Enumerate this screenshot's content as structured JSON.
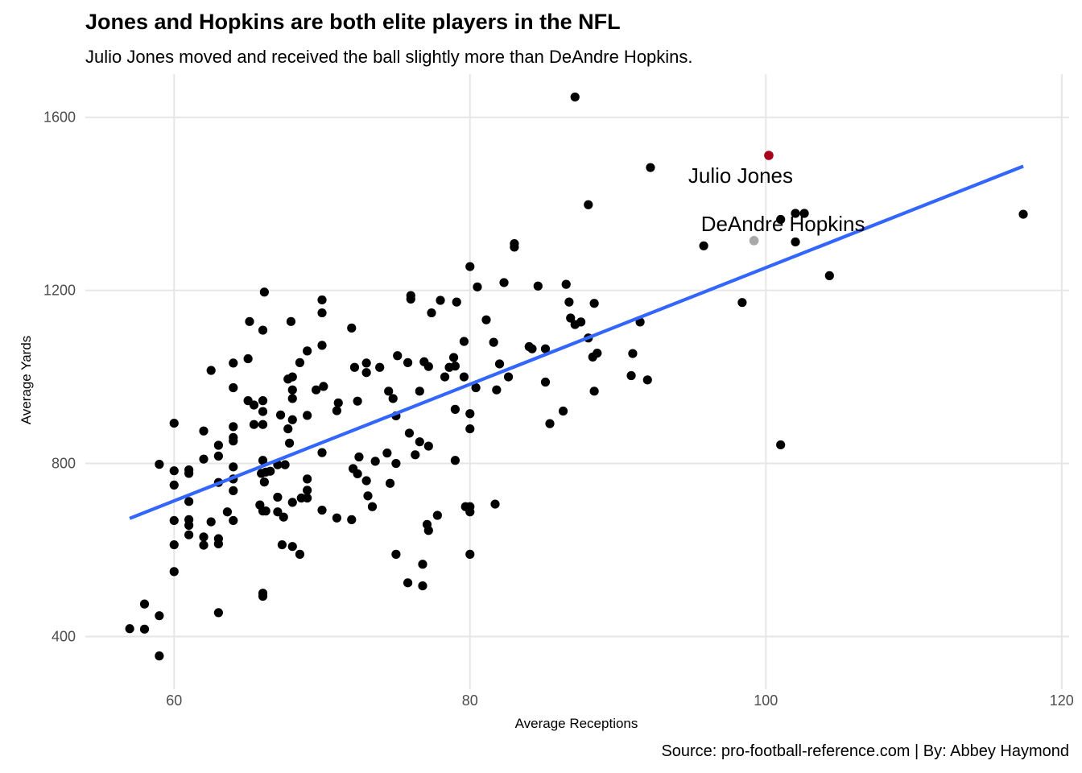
{
  "title": "Jones and Hopkins are both elite players in the NFL",
  "subtitle": "Julio Jones moved and received the ball slightly more than DeAndre Hopkins.",
  "caption": "Source: pro-football-reference.com | By: Abbey Haymond",
  "colors": {
    "point": "#000000",
    "julio": "#a6001a",
    "hopkins": "#a8a8a8",
    "trend": "#3366ff",
    "grid": "#e6e6e6",
    "tick": "#4d4d4d"
  },
  "chart_data": {
    "type": "scatter",
    "xlabel": "Average Receptions",
    "ylabel": "Average Yards",
    "xlim": [
      54,
      120.5
    ],
    "ylim": [
      278,
      1700
    ],
    "xticks": [
      60,
      80,
      100,
      120
    ],
    "yticks": [
      400,
      800,
      1200,
      1600
    ],
    "grid": true,
    "highlights": [
      {
        "label": "Julio Jones",
        "x": 100.2,
        "y": 1512
      },
      {
        "label": "DeAndre Hopkins",
        "x": 99.2,
        "y": 1315
      }
    ],
    "trend_line": {
      "x": [
        57,
        117.4
      ],
      "y": [
        673,
        1487
      ]
    },
    "points": [
      [
        87.1,
        1647
      ],
      [
        92.2,
        1484
      ],
      [
        88,
        1398
      ],
      [
        95.8,
        1303
      ],
      [
        98.4,
        1172
      ],
      [
        101,
        1364
      ],
      [
        102,
        1378
      ],
      [
        102.6,
        1378
      ],
      [
        102,
        1312
      ],
      [
        104.3,
        1234
      ],
      [
        117.4,
        1376
      ],
      [
        101,
        843
      ],
      [
        83,
        1308
      ],
      [
        83,
        1300
      ],
      [
        80,
        1255
      ],
      [
        84.6,
        1210
      ],
      [
        86.5,
        1214
      ],
      [
        80.5,
        1208
      ],
      [
        82.3,
        1218
      ],
      [
        79.1,
        1173
      ],
      [
        81.1,
        1132
      ],
      [
        76,
        1188
      ],
      [
        76,
        1180
      ],
      [
        77.4,
        1148
      ],
      [
        78,
        1177
      ],
      [
        86.8,
        1136
      ],
      [
        87.1,
        1121
      ],
      [
        86.7,
        1173
      ],
      [
        88.4,
        1170
      ],
      [
        91.5,
        1127
      ],
      [
        87.5,
        1127
      ],
      [
        88,
        1090
      ],
      [
        88.6,
        1055
      ],
      [
        88.3,
        1046
      ],
      [
        91,
        1054
      ],
      [
        90.9,
        1003
      ],
      [
        92,
        993
      ],
      [
        88.4,
        967
      ],
      [
        86.3,
        921
      ],
      [
        85.4,
        892
      ],
      [
        84,
        1070
      ],
      [
        84.2,
        1065
      ],
      [
        85.1,
        1065
      ],
      [
        85.1,
        988
      ],
      [
        82,
        1030
      ],
      [
        82.6,
        1000
      ],
      [
        81.6,
        1080
      ],
      [
        79.6,
        1082
      ],
      [
        78.9,
        1045
      ],
      [
        79.6,
        1000
      ],
      [
        79,
        1025
      ],
      [
        80.4,
        975
      ],
      [
        81.8,
        970
      ],
      [
        79,
        925
      ],
      [
        80,
        915
      ],
      [
        80,
        880
      ],
      [
        79,
        807
      ],
      [
        80,
        700
      ],
      [
        79.7,
        700
      ],
      [
        80,
        688
      ],
      [
        80,
        590
      ],
      [
        81.7,
        706
      ],
      [
        77.8,
        680
      ],
      [
        77.1,
        659
      ],
      [
        76.8,
        567
      ],
      [
        76.8,
        517
      ],
      [
        75.8,
        524
      ],
      [
        77.2,
        645
      ],
      [
        77.2,
        840
      ],
      [
        76.6,
        850
      ],
      [
        75.9,
        870
      ],
      [
        75.8,
        1033
      ],
      [
        77.2,
        1024
      ],
      [
        78.6,
        1022
      ],
      [
        78.3,
        1000
      ],
      [
        76.3,
        820
      ],
      [
        75,
        800
      ],
      [
        74.6,
        754
      ],
      [
        75,
        590
      ],
      [
        76.9,
        1035
      ],
      [
        74.4,
        824
      ],
      [
        73,
        1032
      ],
      [
        72.2,
        1022
      ],
      [
        71.1,
        940
      ],
      [
        72,
        1113
      ],
      [
        73,
        1010
      ],
      [
        72.4,
        944
      ],
      [
        73.9,
        1022
      ],
      [
        74.5,
        967
      ],
      [
        74.8,
        950
      ],
      [
        76.6,
        967
      ],
      [
        75.1,
        1049
      ],
      [
        75,
        910
      ],
      [
        72.1,
        788
      ],
      [
        72.4,
        776
      ],
      [
        72.5,
        815
      ],
      [
        73,
        760
      ],
      [
        73.1,
        725
      ],
      [
        73.4,
        700
      ],
      [
        73.6,
        805
      ],
      [
        71,
        922
      ],
      [
        70.1,
        978
      ],
      [
        70,
        825
      ],
      [
        69.6,
        970
      ],
      [
        69,
        911
      ],
      [
        68.5,
        1033
      ],
      [
        69,
        1060
      ],
      [
        70,
        1073
      ],
      [
        70,
        1148
      ],
      [
        70,
        1178
      ],
      [
        68,
        1000
      ],
      [
        67.7,
        995
      ],
      [
        68,
        970
      ],
      [
        68,
        950
      ],
      [
        67.9,
        1128
      ],
      [
        66.1,
        1196
      ],
      [
        66,
        1108
      ],
      [
        67.7,
        880
      ],
      [
        67.8,
        847
      ],
      [
        67.5,
        797
      ],
      [
        68,
        901
      ],
      [
        66,
        945
      ],
      [
        66,
        920
      ],
      [
        66,
        890
      ],
      [
        66,
        807
      ],
      [
        66.2,
        780
      ],
      [
        65.1,
        1128
      ],
      [
        65,
        1042
      ],
      [
        65,
        945
      ],
      [
        64,
        1032
      ],
      [
        64,
        975
      ],
      [
        65.4,
        890
      ],
      [
        65.4,
        935
      ],
      [
        64,
        885
      ],
      [
        64,
        860
      ],
      [
        64,
        852
      ],
      [
        64,
        792
      ],
      [
        64,
        764
      ],
      [
        64,
        737
      ],
      [
        64,
        668
      ],
      [
        63,
        842
      ],
      [
        62,
        875
      ],
      [
        63,
        817
      ],
      [
        62,
        810
      ],
      [
        62.5,
        1015
      ],
      [
        62.5,
        665
      ],
      [
        62,
        630
      ],
      [
        62,
        611
      ],
      [
        61,
        785
      ],
      [
        61,
        777
      ],
      [
        61,
        712
      ],
      [
        61,
        670
      ],
      [
        61,
        657
      ],
      [
        61,
        635
      ],
      [
        60,
        893
      ],
      [
        60,
        783
      ],
      [
        60,
        750
      ],
      [
        60,
        668
      ],
      [
        60,
        612
      ],
      [
        60,
        550
      ],
      [
        59,
        798
      ],
      [
        58,
        475
      ],
      [
        58,
        417
      ],
      [
        59,
        448
      ],
      [
        59,
        355
      ],
      [
        57,
        418
      ],
      [
        63,
        756
      ],
      [
        63.6,
        688
      ],
      [
        63,
        614
      ],
      [
        63,
        626
      ],
      [
        63,
        455
      ],
      [
        66,
        690
      ],
      [
        66.1,
        757
      ],
      [
        65.9,
        777
      ],
      [
        66.5,
        782
      ],
      [
        66,
        500
      ],
      [
        66,
        493
      ],
      [
        65.8,
        704
      ],
      [
        66.2,
        690
      ],
      [
        67,
        722
      ],
      [
        67,
        688
      ],
      [
        67.4,
        676
      ],
      [
        67.2,
        912
      ],
      [
        67,
        797
      ],
      [
        68,
        710
      ],
      [
        68.6,
        720
      ],
      [
        69,
        720
      ],
      [
        69,
        738
      ],
      [
        69,
        764
      ],
      [
        70,
        692
      ],
      [
        71,
        674
      ],
      [
        72,
        670
      ],
      [
        67.3,
        612
      ],
      [
        68,
        608
      ],
      [
        68.5,
        590
      ]
    ]
  }
}
